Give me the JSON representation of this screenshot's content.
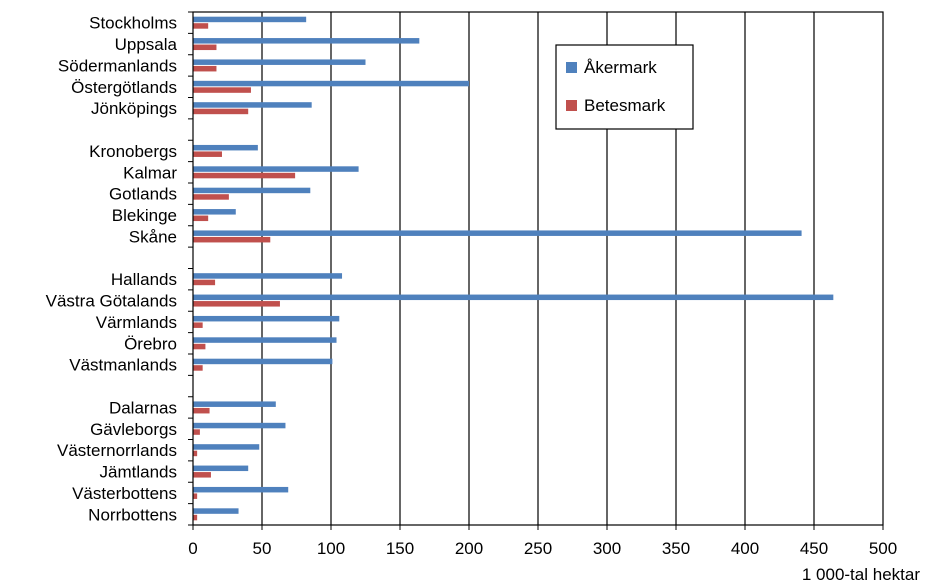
{
  "chart_data": {
    "type": "bar",
    "orientation": "horizontal",
    "categories": [
      "Stockholms",
      "Uppsala",
      "Södermanlands",
      "Östergötlands",
      "Jönköpings",
      "",
      "Kronobergs",
      "Kalmar",
      "Gotlands",
      "Blekinge",
      "Skåne",
      "",
      "Hallands",
      "Västra Götalands",
      "Värmlands",
      "Örebro",
      "Västmanlands",
      "",
      "Dalarnas",
      "Gävleborgs",
      "Västernorrlands",
      "Jämtlands",
      "Västerbottens",
      "Norrbottens"
    ],
    "series": [
      {
        "name": "Åkermark",
        "color": "#4F81BD",
        "values": [
          82,
          164,
          125,
          200,
          86,
          null,
          47,
          120,
          85,
          31,
          441,
          null,
          108,
          464,
          106,
          104,
          101,
          null,
          60,
          67,
          48,
          40,
          69,
          33
        ]
      },
      {
        "name": "Betesmark",
        "color": "#C0504D",
        "values": [
          11,
          17,
          17,
          42,
          40,
          null,
          21,
          74,
          26,
          11,
          56,
          null,
          16,
          63,
          7,
          9,
          7,
          null,
          12,
          5,
          3,
          13,
          3,
          3
        ]
      }
    ],
    "xlim": [
      0,
      500
    ],
    "xticks": [
      0,
      50,
      100,
      150,
      200,
      250,
      300,
      350,
      400,
      450,
      500
    ],
    "xlabel": "1 000-tal hektar",
    "ylabel": "",
    "title": "",
    "grid": "vertical",
    "legend": "top-center"
  }
}
